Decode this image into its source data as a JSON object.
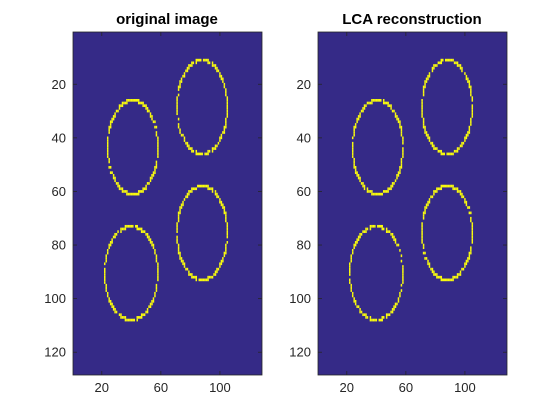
{
  "chart_data": [
    {
      "type": "heatmap",
      "title": "original image",
      "x_range": [
        0.5,
        128.5
      ],
      "y_range": [
        0.5,
        128.5
      ],
      "y_direction": "reversed",
      "xticks": [
        20,
        60,
        100
      ],
      "xtick_labels": [
        "20",
        "60",
        "100"
      ],
      "yticks": [
        20,
        40,
        60,
        80,
        100,
        120
      ],
      "ytick_labels": [
        "20",
        "40",
        "60",
        "80",
        "100",
        "120"
      ],
      "grid": false,
      "colors": {
        "background": "#352a87",
        "foreground": "#f9fb0e"
      },
      "ellipses": [
        {
          "cx": 41,
          "cy": 43.5,
          "rx": 17,
          "ry": 17.5
        },
        {
          "cx": 88,
          "cy": 28.5,
          "rx": 17,
          "ry": 17.5
        },
        {
          "cx": 40,
          "cy": 90.5,
          "rx": 18,
          "ry": 17.5
        },
        {
          "cx": 88,
          "cy": 75.5,
          "rx": 17,
          "ry": 17.5
        }
      ]
    },
    {
      "type": "heatmap",
      "title": "LCA reconstruction",
      "x_range": [
        0.5,
        128.5
      ],
      "y_range": [
        0.5,
        128.5
      ],
      "y_direction": "reversed",
      "xticks": [
        20,
        60,
        100
      ],
      "xtick_labels": [
        "20",
        "60",
        "100"
      ],
      "yticks": [
        20,
        40,
        60,
        80,
        100,
        120
      ],
      "ytick_labels": [
        "20",
        "40",
        "60",
        "80",
        "100",
        "120"
      ],
      "grid": false,
      "colors": {
        "background": "#352a87",
        "foreground": "#f9fb0e"
      },
      "ellipses": [
        {
          "cx": 41,
          "cy": 43.5,
          "rx": 17,
          "ry": 17.5
        },
        {
          "cx": 88,
          "cy": 28.5,
          "rx": 17,
          "ry": 17.5
        },
        {
          "cx": 40,
          "cy": 90.5,
          "rx": 18,
          "ry": 17.5
        },
        {
          "cx": 88,
          "cy": 75.5,
          "rx": 17,
          "ry": 17.5
        }
      ]
    }
  ]
}
